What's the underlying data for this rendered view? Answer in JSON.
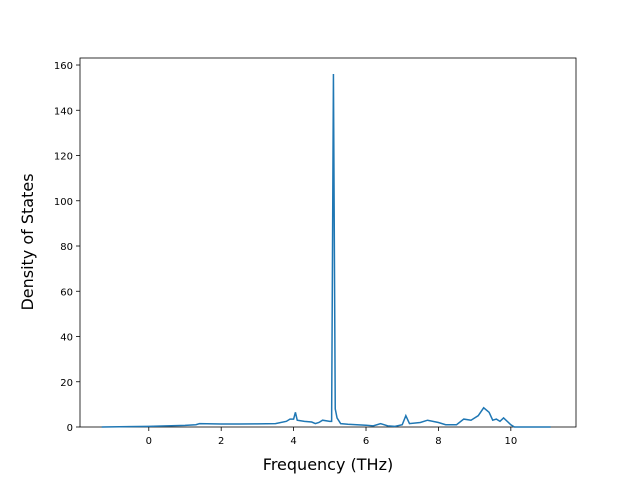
{
  "chart_data": {
    "type": "line",
    "x_label": "Frequency (THz)",
    "y_label": "Density of States",
    "x": [
      -1.3,
      0,
      0.5,
      1,
      1.3,
      1.4,
      2,
      2.5,
      3,
      3.5,
      3.8,
      3.9,
      4.0,
      4.05,
      4.1,
      4.3,
      4.5,
      4.6,
      4.7,
      4.8,
      5.0,
      5.05,
      5.1,
      5.15,
      5.2,
      5.3,
      5.5,
      6,
      6.2,
      6.4,
      6.6,
      6.8,
      7.0,
      7.1,
      7.2,
      7.5,
      7.7,
      8,
      8.2,
      8.5,
      8.7,
      8.9,
      9.1,
      9.25,
      9.4,
      9.5,
      9.6,
      9.7,
      9.8,
      10,
      10.1,
      10.5,
      11.1
    ],
    "series": [
      {
        "color": "#1f77b4",
        "values": [
          0,
          0.3,
          0.5,
          0.7,
          1,
          1.5,
          1.3,
          1.3,
          1.4,
          1.5,
          2.5,
          3.5,
          3.5,
          6.5,
          3,
          2.5,
          2.2,
          1.5,
          2,
          3,
          2.5,
          2.5,
          156,
          8,
          4,
          1.5,
          1.2,
          0.8,
          0.5,
          1.5,
          0.5,
          0.3,
          1,
          5,
          1.5,
          2,
          3,
          2,
          1,
          1,
          3.5,
          3,
          5,
          8.5,
          6.5,
          3,
          3.5,
          2.5,
          4,
          1,
          0,
          0,
          0
        ]
      }
    ],
    "xlim": [
      -1.9,
      11.8
    ],
    "ylim": [
      0,
      163.1
    ],
    "xticks": [
      0,
      2,
      4,
      6,
      8,
      10
    ],
    "yticks": [
      0,
      20,
      40,
      60,
      80,
      100,
      120,
      140,
      160
    ]
  }
}
